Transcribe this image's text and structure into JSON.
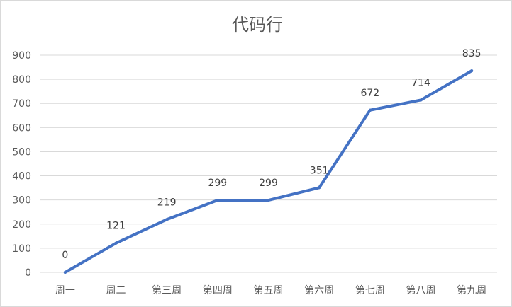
{
  "chart_data": {
    "type": "line",
    "title": "代码行",
    "xlabel": "",
    "ylabel": "",
    "categories": [
      "周一",
      "周二",
      "第三周",
      "第四周",
      "第五周",
      "第六周",
      "第七周",
      "第八周",
      "第九周"
    ],
    "series": [
      {
        "values": [
          0,
          121,
          219,
          299,
          299,
          351,
          672,
          714,
          835
        ]
      }
    ],
    "ylim": [
      0,
      900
    ],
    "yticks": [
      0,
      100,
      200,
      300,
      400,
      500,
      600,
      700,
      800,
      900
    ],
    "ytick_labels": [
      "0",
      "100",
      "200",
      "300",
      "400",
      "500",
      "600",
      "700",
      "800",
      "900"
    ],
    "data_labels": [
      "0",
      "121",
      "219",
      "299",
      "299",
      "351",
      "672",
      "714",
      "835"
    ],
    "grid": true,
    "legend": "none",
    "colors": {
      "line": "#4472C4",
      "grid": "#d9d9d9",
      "text": "#595959"
    }
  }
}
